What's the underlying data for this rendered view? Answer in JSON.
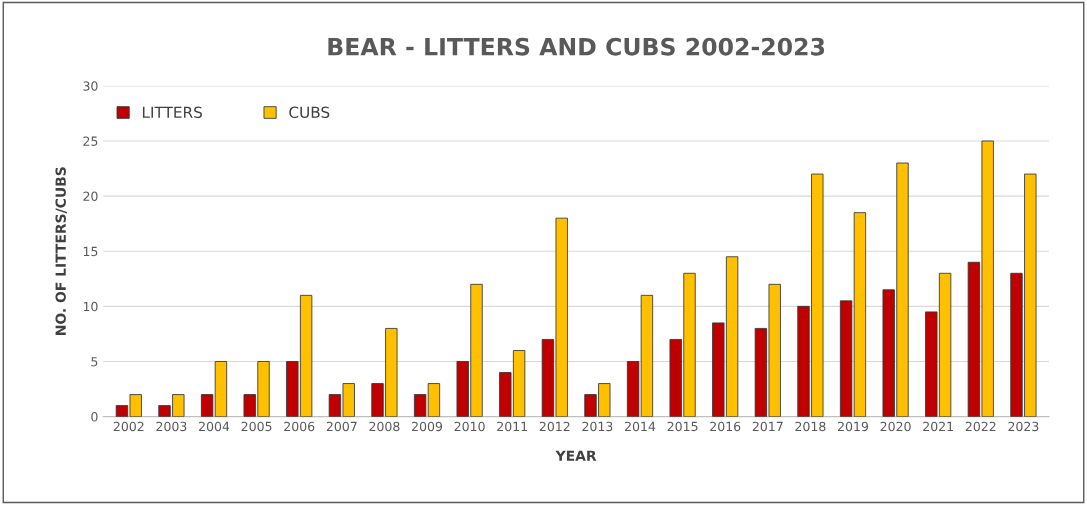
{
  "chart_data": {
    "type": "bar",
    "title": "BEAR - LITTERS AND CUBS 2002-2023",
    "xlabel": "YEAR",
    "ylabel": "NO. OF LITTERS/CUBS",
    "categories": [
      "2002",
      "2003",
      "2004",
      "2005",
      "2006",
      "2007",
      "2008",
      "2009",
      "2010",
      "2011",
      "2012",
      "2013",
      "2014",
      "2015",
      "2016",
      "2017",
      "2018",
      "2019",
      "2020",
      "2021",
      "2022",
      "2023"
    ],
    "series": [
      {
        "name": "LITTERS",
        "color": "#c00000",
        "values": [
          1,
          1,
          2,
          2,
          5,
          2,
          3,
          2,
          5,
          4,
          7,
          2,
          5,
          7,
          8.5,
          8,
          10,
          10.5,
          11.5,
          9.5,
          14,
          13
        ]
      },
      {
        "name": "CUBS",
        "color": "#ffc000",
        "values": [
          2,
          2,
          5,
          5,
          11,
          3,
          8,
          3,
          12,
          6,
          18,
          3,
          11,
          13,
          14.5,
          12,
          22,
          18.5,
          23,
          13,
          25,
          22
        ]
      }
    ],
    "ylim": [
      0,
      30
    ],
    "yticks": [
      0,
      5,
      10,
      15,
      20,
      25,
      30
    ],
    "grid": "y",
    "legend": "top left"
  }
}
